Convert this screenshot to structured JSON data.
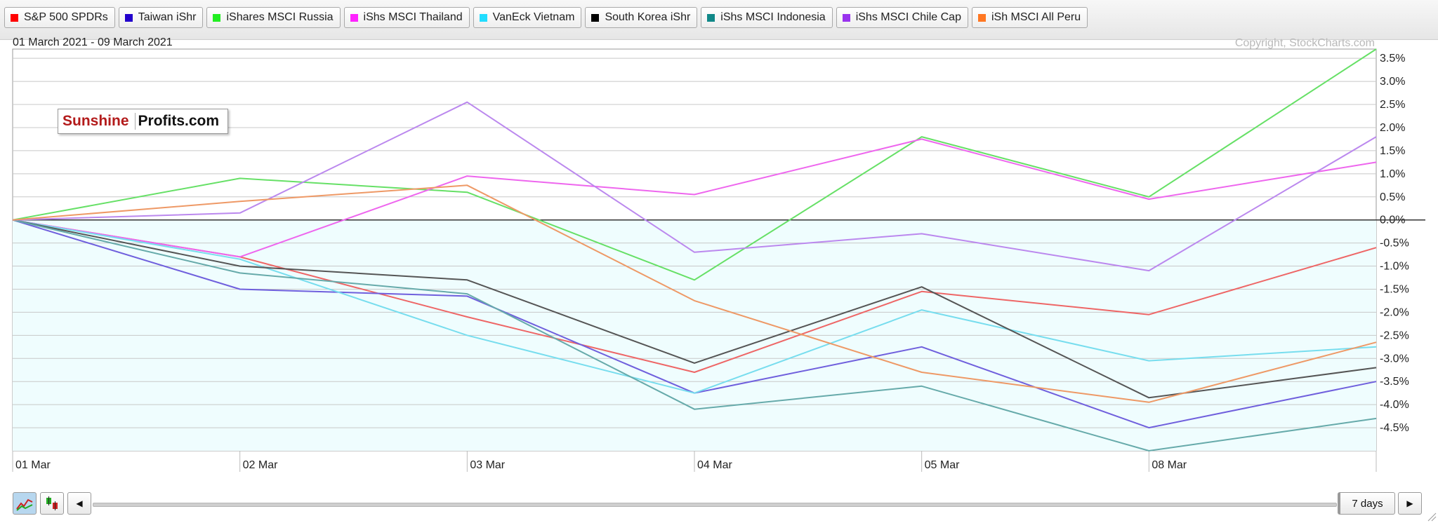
{
  "legend": [
    {
      "label": "S&P 500 SPDRs",
      "color": "#ff0000"
    },
    {
      "label": "Taiwan iShr",
      "color": "#2200cc"
    },
    {
      "label": "iShares MSCI Russia",
      "color": "#22ee22"
    },
    {
      "label": "iShs MSCI Thailand",
      "color": "#ff22ff"
    },
    {
      "label": "VanEck Vietnam",
      "color": "#22ddff"
    },
    {
      "label": "South Korea iShr",
      "color": "#000000"
    },
    {
      "label": "iShs MSCI Indonesia",
      "color": "#118888"
    },
    {
      "label": "iShs MSCI Chile Cap",
      "color": "#9933ee"
    },
    {
      "label": "iSh MSCI All Peru",
      "color": "#ff7722"
    }
  ],
  "header": {
    "date_range": "01 March 2021 - 09 March 2021",
    "copyright": "Copyright, StockCharts.com"
  },
  "logo": {
    "part1": "Sunshine",
    "part2": "Profits.com"
  },
  "controls": {
    "period_label": "7 days",
    "left_arrow": "◀",
    "right_arrow": "▶"
  },
  "colors": {
    "plot_background": "#effdfe",
    "grid": "#c8c8c8",
    "zero_line": "#333333"
  },
  "chart_data": {
    "type": "line",
    "x": [
      "01 Mar",
      "02 Mar",
      "03 Mar",
      "04 Mar",
      "05 Mar",
      "08 Mar",
      "09 Mar"
    ],
    "x_tick_labels": [
      "01  Mar",
      "02  Mar",
      "03  Mar",
      "04  Mar",
      "05  Mar",
      "08  Mar"
    ],
    "ylim": [
      -5.0,
      3.7
    ],
    "y_ticks": [
      3.5,
      3.0,
      2.5,
      2.0,
      1.5,
      1.0,
      0.5,
      0.0,
      -0.5,
      -1.0,
      -1.5,
      -2.0,
      -2.5,
      -3.0,
      -3.5,
      -4.0,
      -4.5
    ],
    "y_tick_labels": [
      "3.5%",
      "3.0%",
      "2.5%",
      "2.0%",
      "1.5%",
      "1.0%",
      "0.5%",
      "0.0%",
      "-0.5%",
      "-1.0%",
      "-1.5%",
      "-2.0%",
      "-2.5%",
      "-3.0%",
      "-3.5%",
      "-4.0%",
      "-4.5%"
    ],
    "grid": true,
    "series": [
      {
        "name": "S&P 500 SPDRs",
        "color": "#ee6666",
        "values": [
          0,
          -0.8,
          -2.1,
          -3.3,
          -1.55,
          -2.05,
          -0.6
        ]
      },
      {
        "name": "Taiwan iShr",
        "color": "#6f5fdd",
        "values": [
          0,
          -1.5,
          -1.65,
          -3.75,
          -2.75,
          -4.5,
          -3.5
        ]
      },
      {
        "name": "iShares MSCI Russia",
        "color": "#66e066",
        "values": [
          0,
          0.9,
          0.6,
          -1.3,
          1.8,
          0.5,
          3.7
        ]
      },
      {
        "name": "iShs MSCI Thailand",
        "color": "#ee66ee",
        "values": [
          0,
          -0.8,
          0.95,
          0.55,
          1.75,
          0.45,
          1.25
        ]
      },
      {
        "name": "VanEck Vietnam",
        "color": "#77ddee",
        "values": [
          0,
          -0.85,
          -2.5,
          -3.75,
          -1.95,
          -3.05,
          -2.75
        ]
      },
      {
        "name": "South Korea iShr",
        "color": "#555555",
        "values": [
          0,
          -1.0,
          -1.3,
          -3.1,
          -1.45,
          -3.85,
          -3.2
        ]
      },
      {
        "name": "iShs MSCI Indonesia",
        "color": "#66aaaa",
        "values": [
          0,
          -1.15,
          -1.6,
          -4.1,
          -3.6,
          -5.0,
          -4.3
        ]
      },
      {
        "name": "iShs MSCI Chile Cap",
        "color": "#bb88ee",
        "values": [
          0,
          0.15,
          2.55,
          -0.7,
          -0.3,
          -1.1,
          1.8
        ]
      },
      {
        "name": "iSh MSCI All Peru",
        "color": "#ee9966",
        "values": [
          0,
          0.4,
          0.75,
          -1.75,
          -3.3,
          -3.95,
          -2.65
        ]
      }
    ]
  }
}
